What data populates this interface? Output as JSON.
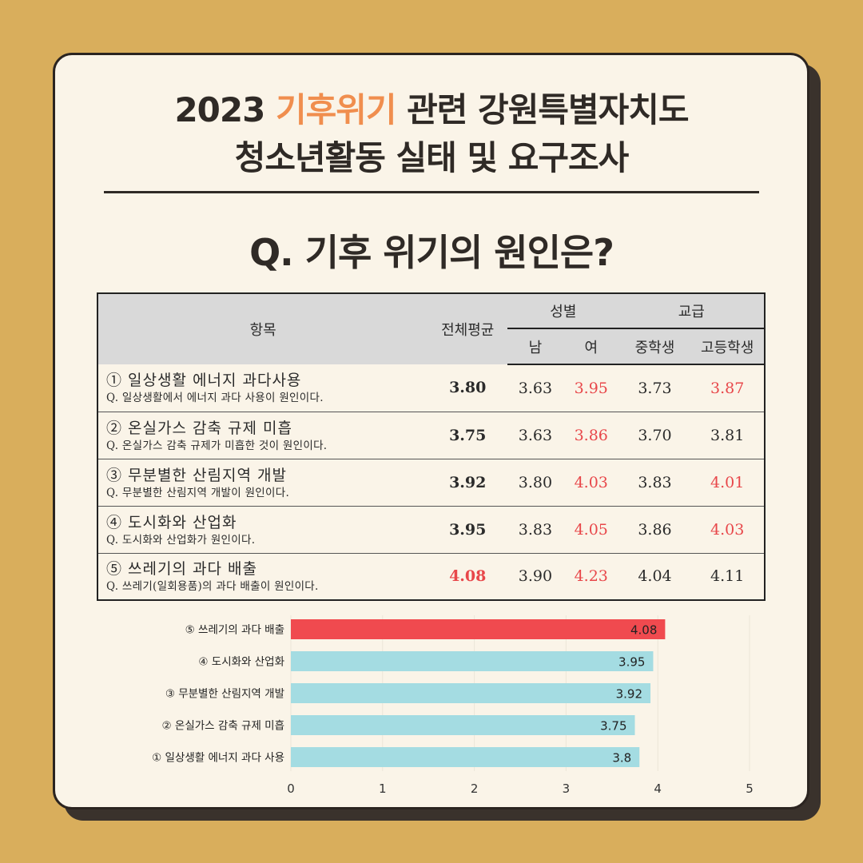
{
  "title": {
    "line1_pre": "2023 ",
    "line1_highlight": "기후위기",
    "line1_post": " 관련 강원특별자치도",
    "line2": "청소년활동 실태 및 요구조사"
  },
  "question": "Q. 기후 위기의 원인은?",
  "table": {
    "headers": {
      "item": "항목",
      "overall": "전체평균",
      "gender": "성별",
      "male": "남",
      "female": "여",
      "school": "교급",
      "middle": "중학생",
      "high": "고등학생"
    },
    "rows": [
      {
        "main": "① 일상생활 에너지 과다사용",
        "sub": "Q. 일상생활에서 에너지 과다 사용이 원인이다.",
        "overall": "3.80",
        "male": "3.63",
        "female": "3.95",
        "middle": "3.73",
        "high": "3.87",
        "red": [
          "female",
          "high"
        ]
      },
      {
        "main": "② 온실가스 감축 규제 미흡",
        "sub": "Q. 온실가스 감축 규제가 미흡한 것이 원인이다.",
        "overall": "3.75",
        "male": "3.63",
        "female": "3.86",
        "middle": "3.70",
        "high": "3.81",
        "red": [
          "female"
        ]
      },
      {
        "main": "③ 무분별한 산림지역 개발",
        "sub": "Q. 무분별한 산림지역 개발이 원인이다.",
        "overall": "3.92",
        "male": "3.80",
        "female": "4.03",
        "middle": "3.83",
        "high": "4.01",
        "red": [
          "female",
          "high"
        ]
      },
      {
        "main": "④ 도시화와 산업화",
        "sub": "Q. 도시화와 산업화가 원인이다.",
        "overall": "3.95",
        "male": "3.83",
        "female": "4.05",
        "middle": "3.86",
        "high": "4.03",
        "red": [
          "female",
          "high"
        ]
      },
      {
        "main": "⑤ 쓰레기의 과다 배출",
        "sub": "Q. 쓰레기(일회용품)의 과다 배출이 원인이다.",
        "overall": "4.08",
        "male": "3.90",
        "female": "4.23",
        "middle": "4.04",
        "high": "4.11",
        "red": [
          "overall",
          "female"
        ]
      }
    ]
  },
  "chart_data": {
    "type": "bar",
    "orientation": "horizontal",
    "categories": [
      "⑤ 쓰레기의 과다 배출",
      "④ 도시화와 산업화",
      "③ 무분별한 산림지역 개발",
      "② 온실가스 감축 규제 미흡",
      "① 일상생활 에너지 과다 사용"
    ],
    "values": [
      4.08,
      3.95,
      3.92,
      3.75,
      3.8
    ],
    "value_labels": [
      "4.08",
      "3.95",
      "3.92",
      "3.75",
      "3.8"
    ],
    "xlim": [
      0,
      5
    ],
    "xticks": [
      "0",
      "1",
      "2",
      "3",
      "4",
      "5"
    ],
    "colors": [
      "#F04A4F",
      "#A4DCE2",
      "#A4DCE2",
      "#A4DCE2",
      "#A4DCE2"
    ],
    "title": "",
    "xlabel": "",
    "ylabel": ""
  }
}
